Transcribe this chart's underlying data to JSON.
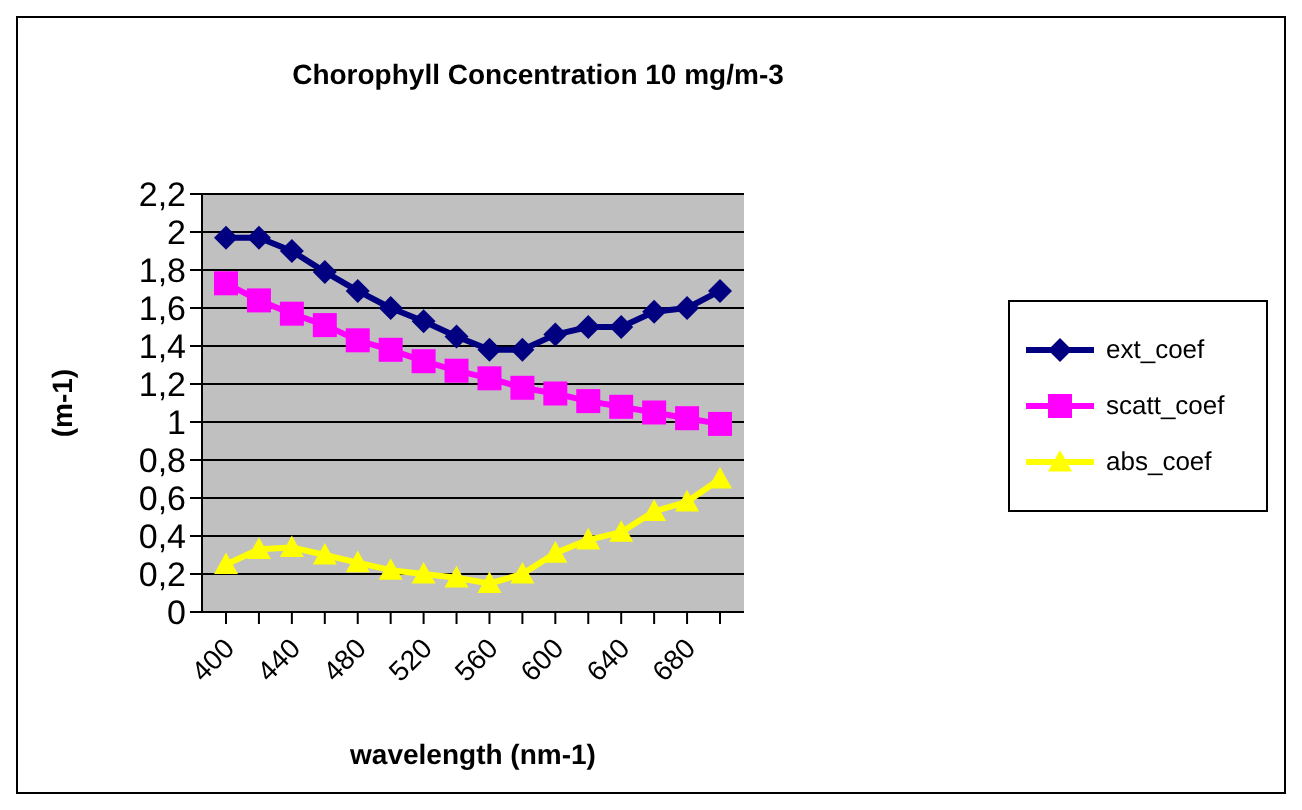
{
  "chart_data": {
    "type": "line",
    "title": "Chorophyll Concentration 10 mg/m-3",
    "xlabel": "wavelength (nm-1)",
    "ylabel": "(m-1)",
    "categories": [
      "400",
      null,
      "440",
      null,
      "480",
      null,
      "520",
      null,
      "560",
      null,
      "600",
      null,
      "640",
      null,
      "680",
      null
    ],
    "series": [
      {
        "name": "ext_coef",
        "color": "#000080",
        "marker": "diamond",
        "values": [
          1.97,
          1.97,
          1.9,
          1.79,
          1.69,
          1.6,
          1.53,
          1.45,
          1.38,
          1.38,
          1.46,
          1.5,
          1.5,
          1.58,
          1.6,
          1.69
        ]
      },
      {
        "name": "scatt_coef",
        "color": "#ff00ff",
        "marker": "square",
        "values": [
          1.73,
          1.64,
          1.57,
          1.51,
          1.43,
          1.38,
          1.32,
          1.27,
          1.23,
          1.18,
          1.15,
          1.11,
          1.08,
          1.05,
          1.02,
          0.99
        ]
      },
      {
        "name": "abs_coef",
        "color": "#ffff00",
        "marker": "triangle",
        "values": [
          0.25,
          0.33,
          0.34,
          0.3,
          0.26,
          0.22,
          0.2,
          0.18,
          0.15,
          0.2,
          0.31,
          0.38,
          0.42,
          0.53,
          0.58,
          0.7
        ]
      }
    ],
    "ylim": [
      0,
      2.2
    ],
    "yticks": [
      0,
      {
        "value": 0.2,
        "label": "0,2"
      },
      {
        "value": 0.4,
        "label": "0,4"
      },
      {
        "value": 0.6,
        "label": "0,6"
      },
      {
        "value": 0.8,
        "label": "0,8"
      },
      1,
      {
        "value": 1.2,
        "label": "1,2"
      },
      {
        "value": 1.4,
        "label": "1,4"
      },
      {
        "value": 1.6,
        "label": "1,6"
      },
      {
        "value": 1.8,
        "label": "1,8"
      },
      2,
      {
        "value": 2.2,
        "label": "2,2"
      }
    ],
    "grid": "y",
    "legend": "right",
    "line_style": "solid"
  }
}
